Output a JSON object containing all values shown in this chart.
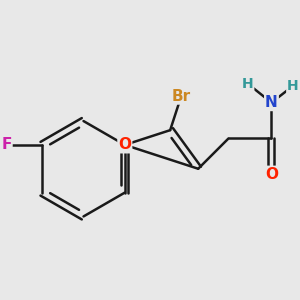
{
  "bg_color": "#e8e8e8",
  "bond_color": "#1a1a1a",
  "bond_width": 1.8,
  "atom_colors": {
    "O": "#ff2200",
    "N": "#2244cc",
    "H": "#339999",
    "Br": "#cc8822",
    "F": "#cc22aa",
    "C": "#1a1a1a"
  },
  "font_size": 11,
  "fig_bg": "#e8e8e8"
}
